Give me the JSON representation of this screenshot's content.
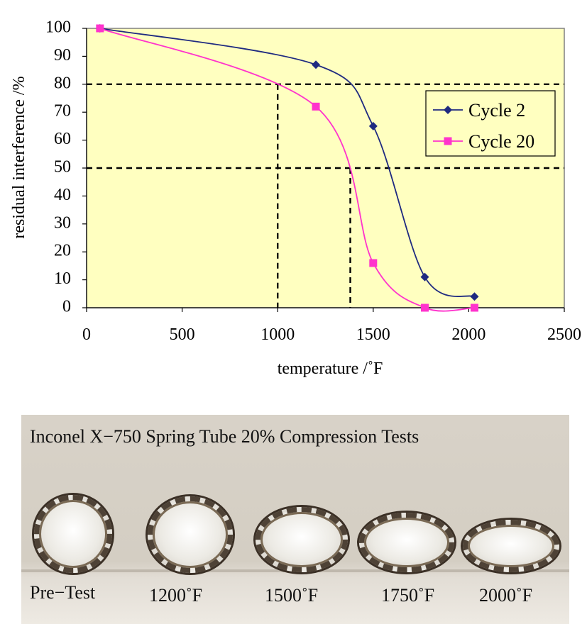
{
  "chart_data": {
    "type": "line",
    "xlabel": "temperature /˚F",
    "ylabel": "residual interference /%",
    "xlim": [
      0,
      2500
    ],
    "ylim": [
      0,
      100
    ],
    "x_ticks": [
      "0",
      "500",
      "1000",
      "1500",
      "2000",
      "2500"
    ],
    "y_ticks": [
      "0",
      "10",
      "20",
      "30",
      "40",
      "50",
      "60",
      "70",
      "80",
      "90",
      "100"
    ],
    "grid": false,
    "legend_position": "right",
    "reference_lines": {
      "horizontal_y": [
        80,
        50
      ],
      "vertical_x": [
        1000,
        1380
      ]
    },
    "series": [
      {
        "name": "Cycle 2",
        "color": "#1f2a80",
        "marker": "diamond",
        "x": [
          70,
          1200,
          1500,
          1770,
          2030
        ],
        "y": [
          100,
          87,
          65,
          11,
          4
        ]
      },
      {
        "name": "Cycle 20",
        "color": "#ff33cc",
        "marker": "square",
        "x": [
          70,
          1200,
          1500,
          1770,
          2030
        ],
        "y": [
          100,
          72,
          16,
          0,
          0
        ]
      }
    ]
  },
  "photo": {
    "title": "Inconel X−750 Spring Tube 20% Compression Tests",
    "labels": [
      "Pre−Test",
      "1200˚F",
      "1500˚F",
      "1750˚F",
      "2000˚F"
    ]
  }
}
